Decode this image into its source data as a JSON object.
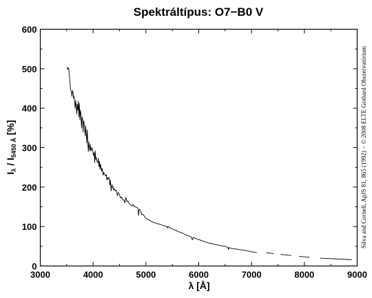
{
  "chart_data": {
    "type": "line",
    "title": "Spektráltípus: O7−B0 V",
    "xlabel": "λ [Å]",
    "ylabel": {
      "main": "I",
      "main_sub": "λ",
      "divider": " / I",
      "ref_sub": "5450 Å",
      "unit": " [%]"
    },
    "xlim": [
      3000,
      9000
    ],
    "ylim": [
      0,
      600
    ],
    "xticks": [
      "3000",
      "4000",
      "5000",
      "6000",
      "7000",
      "8000",
      "9000"
    ],
    "yticks": [
      "0",
      "100",
      "200",
      "300",
      "400",
      "500",
      "600"
    ],
    "grid": false,
    "legend": "none",
    "line_color": "#000000",
    "credit": "Silva and Cornell, ApJS 81, 865 (1992) − © 2008 ELTE Gothard Obszervatórium",
    "series": [
      {
        "segments": [
          {
            "x": [
              3510,
              3520,
              3530,
              3540,
              3550,
              3560,
              3570,
              3580,
              3590,
              3600,
              3610,
              3620,
              3630,
              3640,
              3650,
              3660,
              3670,
              3680,
              3690,
              3700,
              3710,
              3720,
              3730,
              3740,
              3750,
              3760,
              3770,
              3780,
              3790,
              3800,
              3810,
              3820,
              3830,
              3840,
              3850,
              3860,
              3870,
              3880,
              3890,
              3900,
              3910,
              3920,
              3930,
              3940,
              3950,
              3960,
              3970,
              3980,
              3990,
              4000,
              4010,
              4020,
              4030,
              4040,
              4050,
              4060,
              4070,
              4080,
              4090,
              4100,
              4110,
              4120,
              4130,
              4140,
              4150,
              4160,
              4170,
              4180,
              4190,
              4200,
              4210,
              4220,
              4230,
              4240,
              4250,
              4260,
              4270,
              4280,
              4290,
              4300,
              4310,
              4320,
              4330,
              4340,
              4350,
              4360,
              4370,
              4380,
              4390,
              4400,
              4420,
              4440,
              4460,
              4470,
              4480,
              4500,
              4520,
              4540,
              4560,
              4580,
              4600,
              4620,
              4640,
              4660,
              4680,
              4700,
              4720,
              4740,
              4760,
              4780,
              4800,
              4820,
              4840,
              4850,
              4860,
              4870,
              4880,
              4900,
              4920,
              4940,
              4960,
              4980,
              5000,
              5050,
              5100,
              5150,
              5200,
              5250,
              5300,
              5350,
              5400,
              5410,
              5420,
              5450,
              5500,
              5550,
              5600,
              5650,
              5700,
              5750,
              5800,
              5850,
              5870,
              5876,
              5885,
              5900,
              6000,
              6100,
              6200,
              6300,
              6400,
              6500,
              6550,
              6563,
              6575,
              6600,
              6700,
              6800,
              6900,
              7000,
              7100
            ],
            "y": [
              505,
              498,
              502,
              500,
              480,
              470,
              450,
              445,
              440,
              430,
              445,
              440,
              425,
              430,
              415,
              400,
              420,
              405,
              385,
              410,
              395,
              418,
              378,
              412,
              370,
              395,
              385,
              350,
              378,
              372,
              340,
              368,
              362,
              345,
              330,
              355,
              335,
              312,
              345,
              310,
              290,
              315,
              302,
              292,
              308,
              292,
              295,
              300,
              293,
              285,
              280,
              288,
              262,
              292,
              270,
              275,
              268,
              262,
              263,
              273,
              252,
              265,
              245,
              258,
              250,
              240,
              248,
              238,
              230,
              238,
              234,
              232,
              230,
              228,
              232,
              218,
              224,
              220,
              222,
              225,
              210,
              205,
              218,
              190,
              202,
              206,
              198,
              200,
              192,
              196,
              190,
              192,
              178,
              185,
              186,
              180,
              172,
              175,
              168,
              168,
              160,
              174,
              163,
              165,
              158,
              157,
              154,
              152,
              156,
              150,
              150,
              149,
              148,
              145,
              128,
              141,
              144,
              140,
              130,
              131,
              128,
              125,
              120,
              118,
              113,
              110,
              108,
              106,
              104,
              102,
              100,
              96,
              100,
              97,
              94,
              91,
              88,
              85,
              83,
              79,
              77,
              74,
              72,
              66,
              69,
              72,
              67,
              62,
              58,
              55,
              52,
              50,
              47,
              42,
              47,
              45,
              43,
              41,
              39,
              36,
              34
            ]
          },
          {
            "x": [
              7280,
              7420
            ],
            "y": [
              33.5,
              31.5
            ]
          },
          {
            "x": [
              7550,
              7750
            ],
            "y": [
              29.5,
              26.5
            ]
          },
          {
            "x": [
              7900,
              8100
            ],
            "y": [
              24.5,
              22.0
            ]
          },
          {
            "x": [
              8300,
              8900
            ],
            "y": [
              20.0,
              16.0
            ]
          }
        ]
      }
    ]
  }
}
